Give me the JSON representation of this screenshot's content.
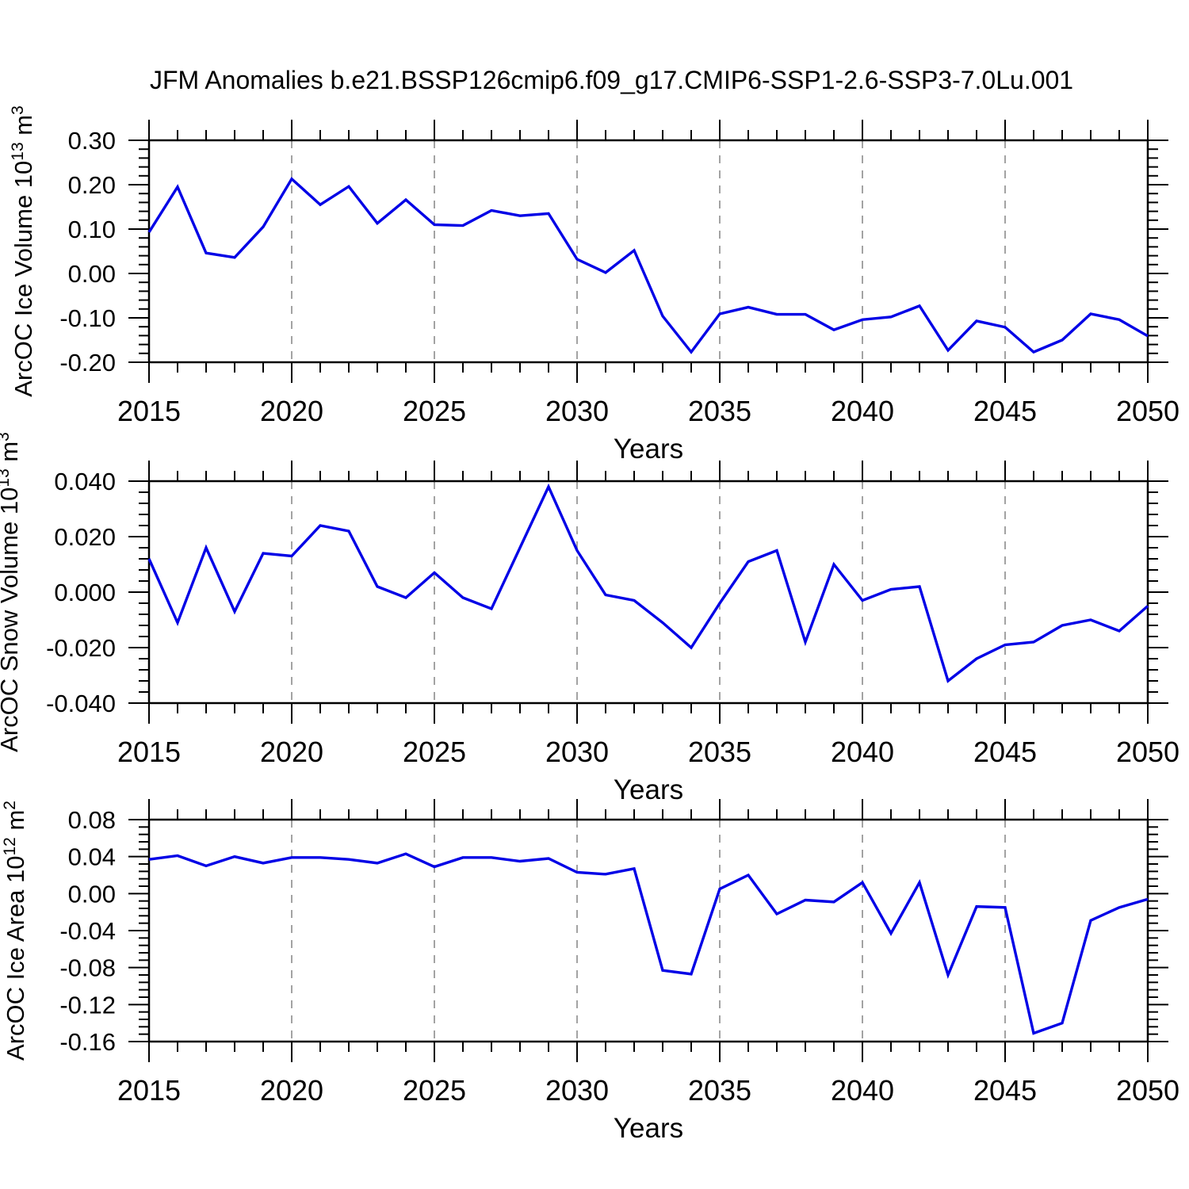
{
  "colors": {
    "line": "#0000e6",
    "axis": "#000000",
    "gridline": "#999999",
    "background": "#ffffff",
    "text": "#000000"
  },
  "chart_data": {
    "figure_title": "JFM Anomalies b.e21.BSSP126cmip6.f09_g17.CMIP6-SSP1-2.6-SSP3-7.0Lu.001",
    "type": "line",
    "grid": "vertical-dashed",
    "xlabel": "Years",
    "years": [
      2015,
      2016,
      2017,
      2018,
      2019,
      2020,
      2021,
      2022,
      2023,
      2024,
      2025,
      2026,
      2027,
      2028,
      2029,
      2030,
      2031,
      2032,
      2033,
      2034,
      2035,
      2036,
      2037,
      2038,
      2039,
      2040,
      2041,
      2042,
      2043,
      2044,
      2045,
      2046,
      2047,
      2048,
      2049,
      2050
    ],
    "x_axis": {
      "range": [
        2015,
        2050
      ],
      "major_step": 5,
      "minor_step": 1,
      "tick_labels": [
        "2015",
        "2020",
        "2025",
        "2030",
        "2035",
        "2040",
        "2045",
        "2050"
      ],
      "gridline_years": [
        2020,
        2025,
        2030,
        2035,
        2040,
        2045
      ]
    },
    "panels": [
      {
        "name": "arcoc-ice-volume",
        "ylabel": "ArcOC Ice Volume 10^13 m^3",
        "ylabel_parts": [
          [
            "ArcOC Ice Volume 10",
            false
          ],
          [
            "13",
            true
          ],
          [
            " m",
            false
          ],
          [
            "3",
            true
          ]
        ],
        "ylim": [
          -0.2,
          0.3
        ],
        "ytick_values": [
          0.3,
          0.2,
          0.1,
          0.0,
          -0.1,
          -0.2
        ],
        "ytick_labels": [
          "0.30",
          "0.20",
          "0.10",
          "0.00",
          "-0.10",
          "-0.20"
        ],
        "ytick_minor_step": 0.02,
        "values": [
          0.093,
          0.195,
          0.046,
          0.036,
          0.105,
          0.213,
          0.155,
          0.196,
          0.113,
          0.166,
          0.11,
          0.108,
          0.142,
          0.13,
          0.135,
          0.032,
          0.002,
          0.052,
          -0.096,
          -0.177,
          -0.091,
          -0.076,
          -0.092,
          -0.092,
          -0.127,
          -0.104,
          -0.098,
          -0.073,
          -0.173,
          -0.107,
          -0.121,
          -0.177,
          -0.15,
          -0.091,
          -0.104,
          -0.141
        ]
      },
      {
        "name": "arcoc-snow-volume",
        "ylabel": "ArcOC Snow Volume 10^13 m^3",
        "ylabel_parts": [
          [
            "ArcOC Snow Volume 10",
            false
          ],
          [
            "13",
            true
          ],
          [
            " m",
            false
          ],
          [
            "3",
            true
          ]
        ],
        "ylim": [
          -0.04,
          0.04
        ],
        "ytick_values": [
          0.04,
          0.02,
          0.0,
          -0.02,
          -0.04
        ],
        "ytick_labels": [
          "0.040",
          "0.020",
          "0.000",
          "-0.020",
          "-0.040"
        ],
        "ytick_minor_step": 0.004,
        "values": [
          0.012,
          -0.011,
          0.016,
          -0.007,
          0.014,
          0.013,
          0.024,
          0.022,
          0.002,
          -0.002,
          0.007,
          -0.002,
          -0.006,
          0.016,
          0.038,
          0.015,
          -0.001,
          -0.003,
          -0.011,
          -0.02,
          -0.004,
          0.011,
          0.015,
          -0.018,
          0.01,
          -0.003,
          0.001,
          0.002,
          -0.032,
          -0.024,
          -0.019,
          -0.018,
          -0.012,
          -0.01,
          -0.014,
          -0.005
        ]
      },
      {
        "name": "arcoc-ice-area",
        "ylabel": "ArcOC Ice Area 10^12 m^2",
        "ylabel_parts": [
          [
            "ArcOC Ice Area 10",
            false
          ],
          [
            "12",
            true
          ],
          [
            " m",
            false
          ],
          [
            "2",
            true
          ]
        ],
        "ylim": [
          -0.16,
          0.08
        ],
        "ytick_values": [
          0.08,
          0.04,
          0.0,
          -0.04,
          -0.08,
          -0.12,
          -0.16
        ],
        "ytick_labels": [
          "0.08",
          "0.04",
          "0.00",
          "-0.04",
          "-0.08",
          "-0.12",
          "-0.16"
        ],
        "ytick_minor_step": 0.008,
        "values": [
          0.037,
          0.041,
          0.03,
          0.04,
          0.033,
          0.039,
          0.039,
          0.037,
          0.033,
          0.043,
          0.029,
          0.039,
          0.039,
          0.035,
          0.038,
          0.023,
          0.021,
          0.027,
          -0.083,
          -0.087,
          0.005,
          0.02,
          -0.022,
          -0.007,
          -0.009,
          0.012,
          -0.043,
          0.012,
          -0.088,
          -0.014,
          -0.015,
          -0.151,
          -0.14,
          -0.029,
          -0.015,
          -0.006
        ]
      }
    ]
  }
}
